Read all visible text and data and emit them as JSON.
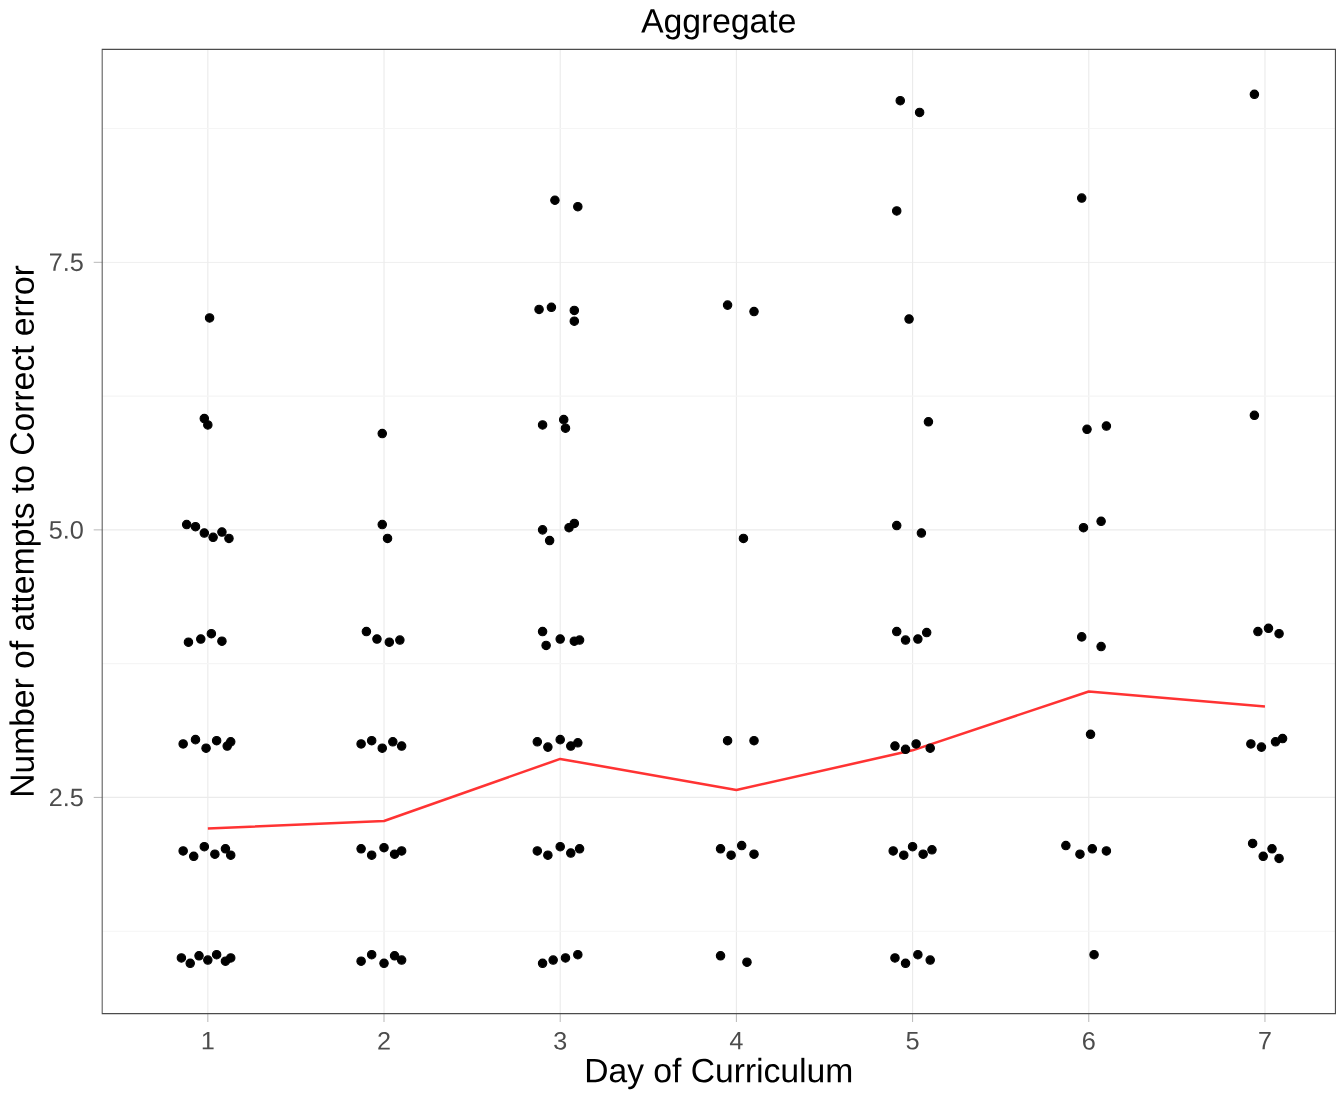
{
  "chart_data": {
    "type": "scatter",
    "title": "Aggregate",
    "xlabel": "Day of Curriculum",
    "ylabel": "Number of attempts to Correct error",
    "xlim": [
      0.4,
      7.4
    ],
    "ylim": [
      0.48,
      9.49
    ],
    "xticks": [
      1,
      2,
      3,
      4,
      5,
      6,
      7
    ],
    "yticks": [
      {
        "value": 1.25,
        "label": null
      },
      {
        "value": 2.5,
        "label": "2.5"
      },
      {
        "value": 3.75,
        "label": null
      },
      {
        "value": 5,
        "label": "5.0"
      },
      {
        "value": 6.25,
        "label": null
      },
      {
        "value": 7.5,
        "label": "7.5"
      },
      {
        "value": 8.75,
        "label": null
      }
    ],
    "grid": true,
    "series": [
      {
        "color": "#000000",
        "marker": "circle",
        "x": [
          0.85,
          0.9,
          0.95,
          1.0,
          1.05,
          1.1,
          1.13,
          0.86,
          0.92,
          0.98,
          1.04,
          1.1,
          1.13,
          0.86,
          0.93,
          0.99,
          1.05,
          1.11,
          1.13,
          0.89,
          0.96,
          1.02,
          1.08,
          0.88,
          0.93,
          0.98,
          1.03,
          1.08,
          1.12,
          0.98,
          1.0,
          1.01,
          1.87,
          1.93,
          2.0,
          2.06,
          2.1,
          1.87,
          1.93,
          2.0,
          2.06,
          2.1,
          1.87,
          1.93,
          1.99,
          2.05,
          2.1,
          1.9,
          1.96,
          2.03,
          2.09,
          1.99,
          2.02,
          1.99,
          2.9,
          2.96,
          3.03,
          3.1,
          2.87,
          2.93,
          3.0,
          3.06,
          3.11,
          2.87,
          2.93,
          3.0,
          3.06,
          3.1,
          2.9,
          2.92,
          3.0,
          3.08,
          3.11,
          2.9,
          2.94,
          3.05,
          3.08,
          2.9,
          3.02,
          3.03,
          2.88,
          2.95,
          3.08,
          3.08,
          2.97,
          3.1,
          3.95,
          4.1,
          4.04,
          3.95,
          4.1,
          3.91,
          3.97,
          4.03,
          4.1,
          3.91,
          4.06,
          4.93,
          5.04,
          4.91,
          4.98,
          5.09,
          4.91,
          5.05,
          4.91,
          4.96,
          5.03,
          5.08,
          4.9,
          4.96,
          5.02,
          5.1,
          4.89,
          4.95,
          5.0,
          5.06,
          5.11,
          4.9,
          4.96,
          5.03,
          5.1,
          5.96,
          5.99,
          6.1,
          5.97,
          6.07,
          5.96,
          6.07,
          6.01,
          5.87,
          5.95,
          6.02,
          6.1,
          6.03,
          6.94,
          6.94,
          6.96,
          7.02,
          7.08,
          6.92,
          6.98,
          7.06,
          7.1,
          6.93,
          6.99,
          7.04,
          7.08
        ],
        "values": [
          1.0,
          0.95,
          1.02,
          0.98,
          1.03,
          0.97,
          1.0,
          2.0,
          1.95,
          2.04,
          1.97,
          2.02,
          1.96,
          3.0,
          3.04,
          2.96,
          3.03,
          2.98,
          3.02,
          3.95,
          3.98,
          4.03,
          3.96,
          5.05,
          5.03,
          4.97,
          4.93,
          4.98,
          4.92,
          6.04,
          5.98,
          6.98,
          0.97,
          1.03,
          0.95,
          1.02,
          0.98,
          2.02,
          1.96,
          2.03,
          1.97,
          2.0,
          3.0,
          3.03,
          2.96,
          3.02,
          2.98,
          4.05,
          3.98,
          3.95,
          3.97,
          5.05,
          4.92,
          5.9,
          0.95,
          0.98,
          1.0,
          1.03,
          2.0,
          1.96,
          2.04,
          1.98,
          2.02,
          3.02,
          2.97,
          3.04,
          2.98,
          3.01,
          4.05,
          3.92,
          3.98,
          3.96,
          3.97,
          5.0,
          4.9,
          5.02,
          5.06,
          5.98,
          6.03,
          5.95,
          7.06,
          7.08,
          7.05,
          6.95,
          8.08,
          8.02,
          7.1,
          7.04,
          4.92,
          3.03,
          3.03,
          2.02,
          1.96,
          2.05,
          1.97,
          1.02,
          0.96,
          9.01,
          8.9,
          7.98,
          6.97,
          6.01,
          5.04,
          4.97,
          4.05,
          3.97,
          3.98,
          4.04,
          2.98,
          2.95,
          3.0,
          2.96,
          2.0,
          1.96,
          2.04,
          1.97,
          2.01,
          1.0,
          0.95,
          1.03,
          0.98,
          8.1,
          5.94,
          5.97,
          5.02,
          5.08,
          4.0,
          3.91,
          3.09,
          2.05,
          1.97,
          2.02,
          2.0,
          1.03,
          9.07,
          6.07,
          4.05,
          4.08,
          4.03,
          3.0,
          2.97,
          3.02,
          3.05,
          2.07,
          1.95,
          2.02,
          1.93
        ]
      },
      {
        "type": "line",
        "color": "#ff3333",
        "marker": "none",
        "line_style": "solid",
        "x": [
          1,
          2,
          3,
          4,
          5,
          6,
          7
        ],
        "values": [
          2.21,
          2.28,
          2.86,
          2.57,
          2.94,
          3.49,
          3.35
        ]
      }
    ]
  }
}
